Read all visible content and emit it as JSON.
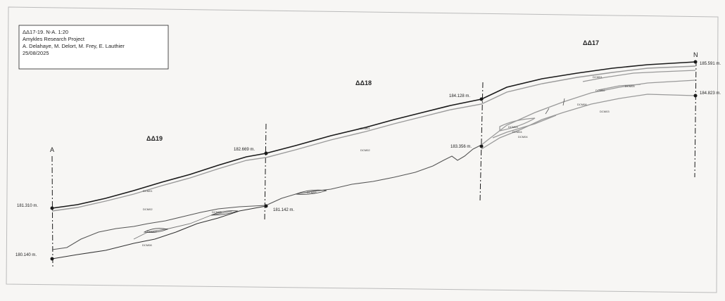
{
  "title_block": {
    "line1": "ΔΔ17-19. N-A. 1:20",
    "line2": "Amykles Research Project",
    "line3": "A. Delahaye, M. Delort, M. Frey, E. Lauthier",
    "line4": "25/08/2025"
  },
  "zones": {
    "z19": "ΔΔ19",
    "z18": "ΔΔ18",
    "z17": "ΔΔ17"
  },
  "endpoints": {
    "left": "A",
    "right": "N"
  },
  "elevations": {
    "e1": "181.310 m.",
    "e2": "180.140 m.",
    "e3": "182.669 m.",
    "e4": "181.142 m.",
    "e5": "184.128 m.",
    "e6": "183.356 m.",
    "e7": "185.591 m.",
    "e8": "184.823 m."
  },
  "layers": {
    "l1": "DCM01",
    "l2": "DCM02",
    "l3": "DCM08",
    "l4": "DCM07",
    "l5": "DCM05",
    "l6": "DCM06",
    "l7": "DCM01",
    "l8": "DCM02",
    "l9": "DCM03",
    "l10": "DCM04",
    "l11": "DCM01",
    "l12": "DCM05",
    "l13": "DCM02",
    "l14": "DCM03",
    "l15": "DCM04",
    "l16": "DCM06"
  },
  "colors": {
    "ink": "#1a1a1a",
    "grey_line": "#9a9a9a",
    "paper": "#f7f6f4"
  }
}
